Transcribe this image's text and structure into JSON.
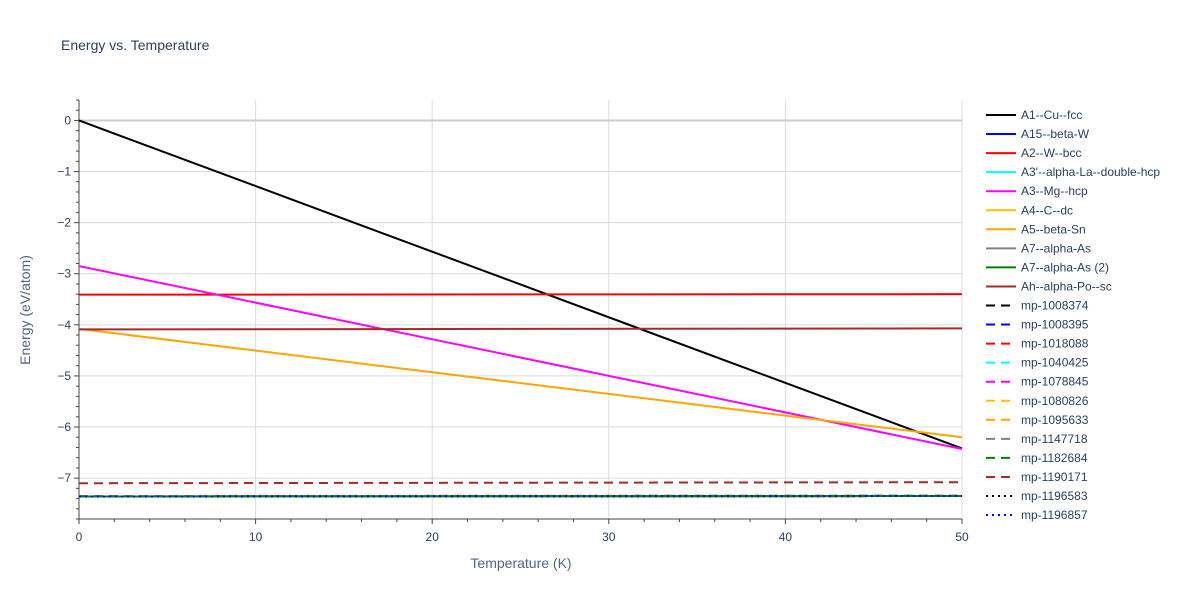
{
  "chart_data": {
    "type": "line",
    "title": "Energy vs. Temperature",
    "xlabel": "Temperature (K)",
    "ylabel": "Energy (eV/atom)",
    "xlim": [
      0,
      50
    ],
    "ylim": [
      -7.8,
      0.4
    ],
    "grid": true,
    "legend_position": "right",
    "x_ticks": [
      0,
      10,
      20,
      30,
      40,
      50
    ],
    "x_tick_labels": [
      "0",
      "10",
      "20",
      "30",
      "40",
      "50"
    ],
    "y_ticks": [
      0,
      -1,
      -2,
      -3,
      -4,
      -5,
      -6,
      -7
    ],
    "y_tick_labels": [
      "0",
      "−1",
      "−2",
      "−3",
      "−4",
      "−5",
      "−6",
      "−7"
    ],
    "series": [
      {
        "name": "A1--Cu--fcc",
        "color": "#000000",
        "dash": "solid",
        "x": [
          0,
          50
        ],
        "y": [
          0,
          -6.42
        ]
      },
      {
        "name": "A15--beta-W",
        "color": "#0000ff",
        "dash": "solid",
        "x": [
          0,
          50
        ],
        "y": [
          -7.36,
          -7.35
        ]
      },
      {
        "name": "A2--W--bcc",
        "color": "#ff0000",
        "dash": "solid",
        "x": [
          0,
          50
        ],
        "y": [
          -3.41,
          -3.4
        ]
      },
      {
        "name": "A3'--alpha-La--double-hcp",
        "color": "#00ffff",
        "dash": "solid",
        "x": [
          0,
          50
        ],
        "y": [
          -7.36,
          -7.35
        ]
      },
      {
        "name": "A3--Mg--hcp",
        "color": "#ff00ff",
        "dash": "solid",
        "x": [
          0,
          50
        ],
        "y": [
          -2.85,
          -6.43
        ]
      },
      {
        "name": "A4--C--dc",
        "color": "#ffbf00",
        "dash": "solid",
        "x": [
          0,
          50
        ],
        "y": [
          -7.36,
          -7.35
        ]
      },
      {
        "name": "A5--beta-Sn",
        "color": "#ffa500",
        "dash": "solid",
        "x": [
          0,
          50
        ],
        "y": [
          -4.08,
          -6.2
        ]
      },
      {
        "name": "A7--alpha-As",
        "color": "#808080",
        "dash": "solid",
        "x": [
          0,
          50
        ],
        "y": [
          -7.36,
          -7.35
        ]
      },
      {
        "name": "A7--alpha-As (2)",
        "color": "#008000",
        "dash": "solid",
        "x": [
          0,
          50
        ],
        "y": [
          -7.36,
          -7.35
        ]
      },
      {
        "name": "Ah--alpha-Po--sc",
        "color": "#a52a2a",
        "dash": "solid",
        "x": [
          0,
          50
        ],
        "y": [
          -4.09,
          -4.07
        ]
      },
      {
        "name": "mp-1008374",
        "color": "#000000",
        "dash": "dash",
        "x": [
          0,
          50
        ],
        "y": [
          -7.36,
          -7.35
        ]
      },
      {
        "name": "mp-1008395",
        "color": "#0000ff",
        "dash": "dash",
        "x": [
          0,
          50
        ],
        "y": [
          -7.36,
          -7.35
        ]
      },
      {
        "name": "mp-1018088",
        "color": "#ff0000",
        "dash": "dash",
        "x": [
          0,
          50
        ],
        "y": [
          -7.36,
          -7.35
        ]
      },
      {
        "name": "mp-1040425",
        "color": "#00ffff",
        "dash": "dash",
        "x": [
          0,
          50
        ],
        "y": [
          -7.36,
          -7.35
        ]
      },
      {
        "name": "mp-1078845",
        "color": "#ff00ff",
        "dash": "dash",
        "x": [
          0,
          50
        ],
        "y": [
          -7.36,
          -7.35
        ]
      },
      {
        "name": "mp-1080826",
        "color": "#ffbf00",
        "dash": "dash",
        "x": [
          0,
          50
        ],
        "y": [
          -7.36,
          -7.35
        ]
      },
      {
        "name": "mp-1095633",
        "color": "#ffa500",
        "dash": "dash",
        "x": [
          0,
          50
        ],
        "y": [
          -7.36,
          -7.35
        ]
      },
      {
        "name": "mp-1147718",
        "color": "#808080",
        "dash": "dash",
        "x": [
          0,
          50
        ],
        "y": [
          -7.35,
          -7.34
        ]
      },
      {
        "name": "mp-1182684",
        "color": "#008000",
        "dash": "dash",
        "x": [
          0,
          50
        ],
        "y": [
          -7.36,
          -7.35
        ]
      },
      {
        "name": "mp-1190171",
        "color": "#a52a2a",
        "dash": "dash",
        "x": [
          0,
          50
        ],
        "y": [
          -7.1,
          -7.08
        ]
      },
      {
        "name": "mp-1196583",
        "color": "#000000",
        "dash": "dot",
        "x": [
          0,
          50
        ],
        "y": [
          -7.36,
          -7.35
        ]
      },
      {
        "name": "mp-1196857",
        "color": "#0000ff",
        "dash": "dot",
        "x": [
          0,
          50
        ],
        "y": [
          -7.36,
          -7.35
        ]
      }
    ]
  }
}
